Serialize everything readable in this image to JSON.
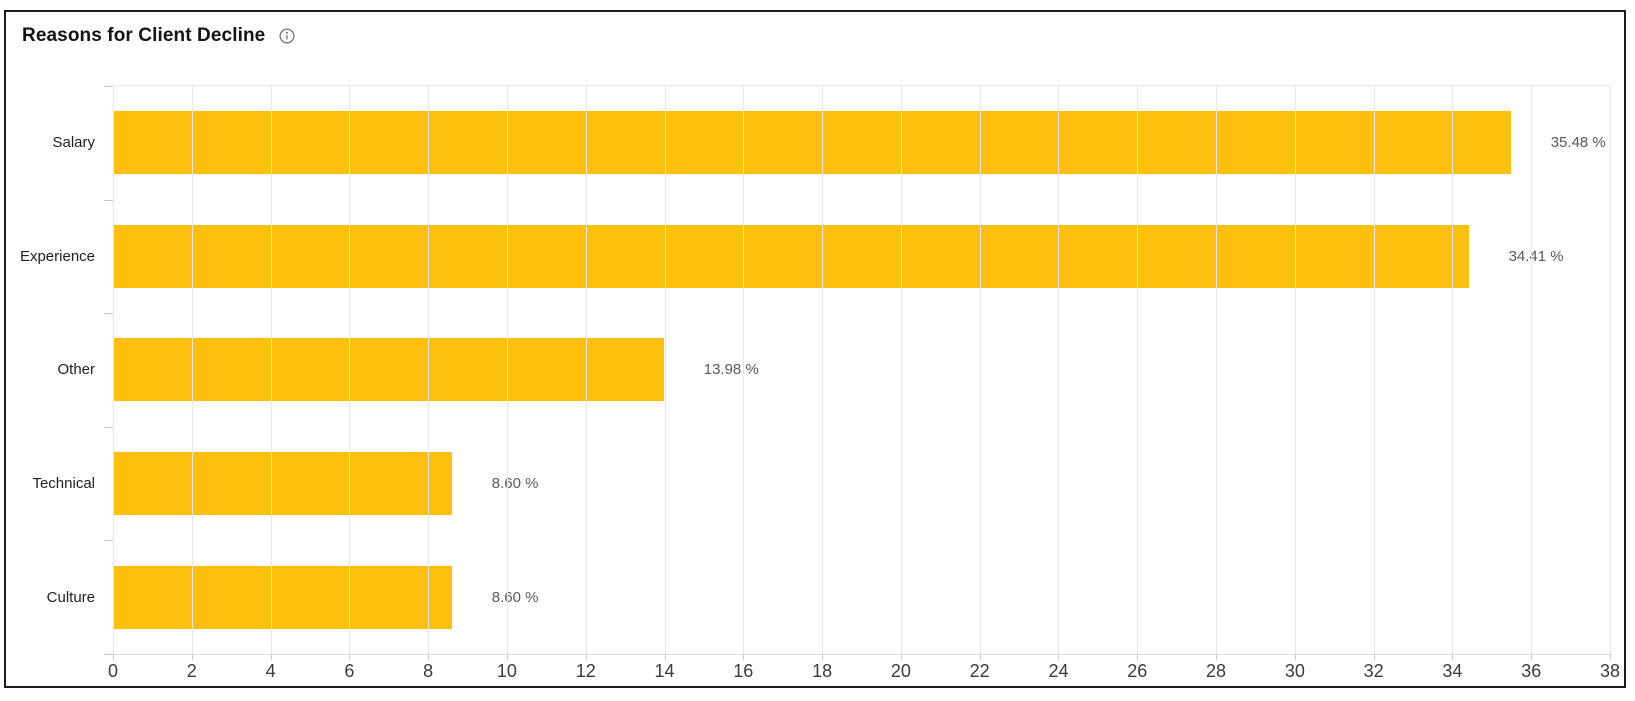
{
  "header": {
    "title": "Reasons for Client Decline",
    "info_icon": "info-icon"
  },
  "colors": {
    "bar": "#FEC00F",
    "card_border": "#1c1c1c",
    "gridline": "#e8e8e8",
    "tick_label": "#3b3b3b",
    "category_label": "#1f1f1f",
    "value_label": "#56595e",
    "title": "#141414"
  },
  "chart_data": {
    "type": "bar",
    "orientation": "horizontal",
    "title": "Reasons for Client Decline",
    "categories": [
      "Salary",
      "Experience",
      "Other",
      "Technical",
      "Culture"
    ],
    "values": [
      35.48,
      34.41,
      13.98,
      8.6,
      8.6
    ],
    "value_labels": [
      "35.48 %",
      "34.41 %",
      "13.98 %",
      "8.60 %",
      "8.60 %"
    ],
    "xlabel": "",
    "ylabel": "",
    "xlim": [
      0,
      38
    ],
    "x_tick_step": 2,
    "x_ticks": [
      0,
      2,
      4,
      6,
      8,
      10,
      12,
      14,
      16,
      18,
      20,
      22,
      24,
      26,
      28,
      30,
      32,
      34,
      36,
      38
    ],
    "grid": true,
    "legend": false,
    "bar_color": "#FEC00F"
  }
}
